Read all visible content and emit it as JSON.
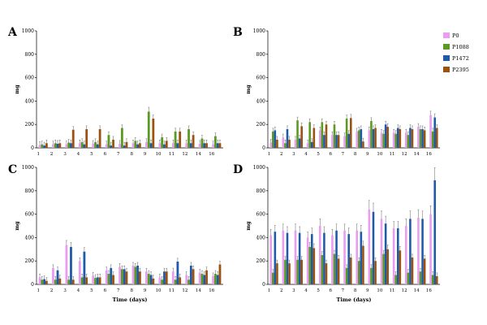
{
  "legend": {
    "items": [
      {
        "name": "P0",
        "color": "#e99cf0"
      },
      {
        "name": "P1088",
        "color": "#5a9a22"
      },
      {
        "name": "P1472",
        "color": "#1f5aa6"
      },
      {
        "name": "P2395",
        "color": "#9b5211"
      }
    ]
  },
  "chart_data": [
    {
      "panel": "A",
      "type": "bar",
      "ylabel": "mg",
      "xlabel": "",
      "ylim": [
        0,
        1000
      ],
      "yticks": [
        0,
        200,
        400,
        600,
        800,
        1000
      ],
      "categories": [
        "1",
        "2",
        "3",
        "4",
        "5",
        "6",
        "7",
        "8",
        "9",
        "10",
        "11",
        "12",
        "14",
        "16"
      ],
      "series": [
        {
          "name": "P0",
          "values": [
            25,
            30,
            30,
            40,
            35,
            30,
            35,
            40,
            50,
            40,
            40,
            40,
            35,
            30
          ]
        },
        {
          "name": "P1088",
          "values": [
            30,
            40,
            45,
            50,
            50,
            110,
            170,
            60,
            310,
            90,
            140,
            160,
            80,
            100
          ]
        },
        {
          "name": "P1472",
          "values": [
            20,
            35,
            40,
            30,
            30,
            20,
            20,
            30,
            40,
            30,
            40,
            40,
            40,
            40
          ]
        },
        {
          "name": "P2395",
          "values": [
            40,
            40,
            155,
            160,
            160,
            70,
            50,
            40,
            250,
            60,
            140,
            110,
            40,
            40
          ]
        }
      ]
    },
    {
      "panel": "B",
      "type": "bar",
      "ylabel": "mg",
      "xlabel": "",
      "ylim": [
        0,
        1000
      ],
      "yticks": [
        0,
        200,
        400,
        600,
        800,
        1000
      ],
      "categories": [
        "1",
        "2",
        "3",
        "4",
        "5",
        "6",
        "7",
        "8",
        "9",
        "10",
        "11",
        "12",
        "14",
        "16"
      ],
      "series": [
        {
          "name": "P0",
          "values": [
            45,
            90,
            70,
            40,
            150,
            110,
            100,
            140,
            150,
            130,
            130,
            130,
            180,
            280
          ]
        },
        {
          "name": "P1088",
          "values": [
            140,
            40,
            235,
            220,
            220,
            200,
            250,
            150,
            230,
            120,
            120,
            110,
            160,
            140
          ]
        },
        {
          "name": "P1472",
          "values": [
            150,
            160,
            80,
            50,
            110,
            110,
            120,
            160,
            160,
            200,
            170,
            170,
            160,
            260
          ]
        },
        {
          "name": "P2395",
          "values": [
            70,
            70,
            185,
            170,
            200,
            110,
            255,
            55,
            170,
            180,
            160,
            160,
            150,
            170
          ]
        }
      ]
    },
    {
      "panel": "C",
      "type": "bar",
      "ylabel": "mg",
      "xlabel": "Time (days)",
      "ylim": [
        0,
        1000
      ],
      "yticks": [
        0,
        200,
        400,
        600,
        800,
        1000
      ],
      "categories": [
        "1",
        "2",
        "3",
        "4",
        "5",
        "6",
        "7",
        "8",
        "9",
        "10",
        "11",
        "12",
        "14",
        "16"
      ],
      "series": [
        {
          "name": "P0",
          "values": [
            60,
            140,
            335,
            200,
            75,
            120,
            150,
            160,
            110,
            60,
            110,
            80,
            100,
            70
          ]
        },
        {
          "name": "P1088",
          "values": [
            40,
            40,
            40,
            60,
            55,
            90,
            130,
            150,
            90,
            40,
            40,
            40,
            90,
            90
          ]
        },
        {
          "name": "P1472",
          "values": [
            45,
            120,
            320,
            280,
            60,
            140,
            130,
            160,
            80,
            110,
            195,
            160,
            80,
            80
          ]
        },
        {
          "name": "P2395",
          "values": [
            30,
            50,
            40,
            60,
            60,
            80,
            110,
            110,
            50,
            110,
            60,
            130,
            120,
            170
          ]
        }
      ]
    },
    {
      "panel": "D",
      "type": "bar",
      "ylabel": "mg",
      "xlabel": "Time (days)",
      "ylim": [
        0,
        1000
      ],
      "yticks": [
        0,
        200,
        400,
        600,
        800,
        1000
      ],
      "categories": [
        "1",
        "2",
        "3",
        "4",
        "5",
        "6",
        "7",
        "8",
        "9",
        "10",
        "11",
        "12",
        "14",
        "16"
      ],
      "series": [
        {
          "name": "P0",
          "values": [
            420,
            460,
            460,
            400,
            500,
            420,
            460,
            460,
            640,
            560,
            480,
            500,
            570,
            600
          ]
        },
        {
          "name": "P1088",
          "values": [
            100,
            210,
            210,
            320,
            250,
            260,
            140,
            200,
            140,
            260,
            80,
            100,
            110,
            80
          ]
        },
        {
          "name": "P1472",
          "values": [
            450,
            440,
            440,
            430,
            440,
            460,
            430,
            450,
            620,
            520,
            480,
            560,
            560,
            890
          ]
        },
        {
          "name": "P2395",
          "values": [
            180,
            180,
            210,
            310,
            180,
            220,
            230,
            330,
            200,
            300,
            290,
            230,
            220,
            70
          ]
        }
      ]
    }
  ]
}
